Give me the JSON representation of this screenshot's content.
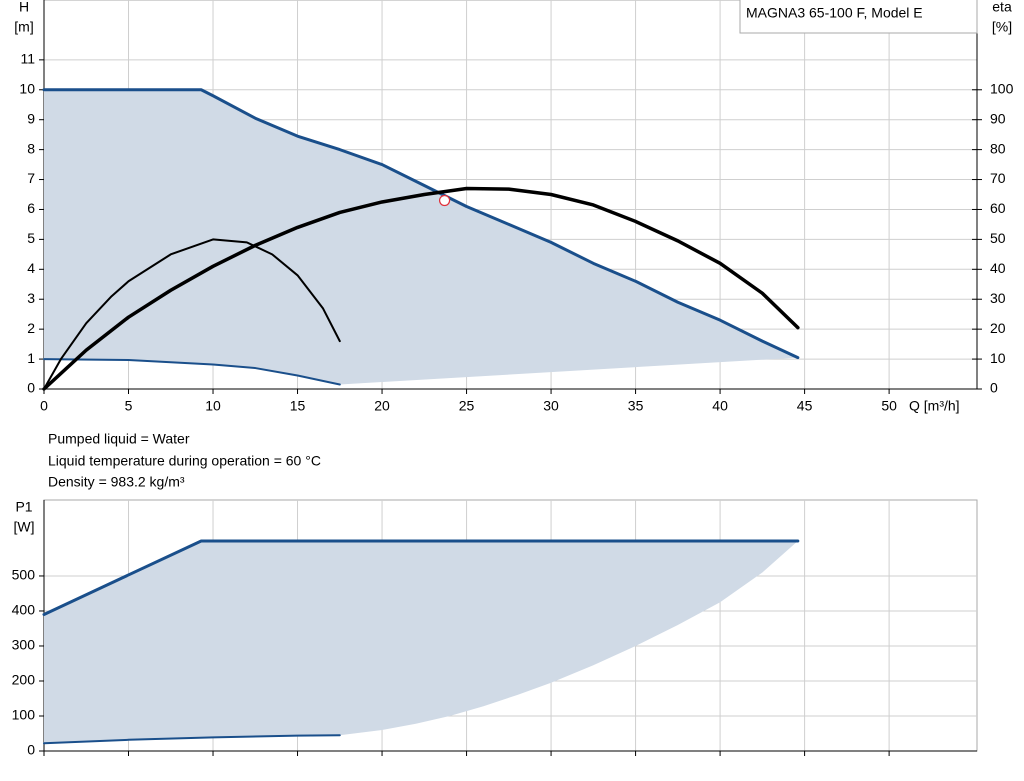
{
  "chart_data": [
    {
      "type": "line",
      "legend_text": "MAGNA3 65-100 F, Model E",
      "ylabel": "H",
      "yunit": "[m]",
      "y2label": "eta",
      "y2unit": "[%]",
      "xlabel": "Q [m³/h]",
      "xlim": [
        0,
        55.2
      ],
      "xticks": [
        0,
        5,
        10,
        15,
        20,
        25,
        30,
        35,
        40,
        45,
        50
      ],
      "ylim": [
        0,
        13
      ],
      "yticks": [
        0,
        1,
        2,
        3,
        4,
        5,
        6,
        7,
        8,
        9,
        10,
        11
      ],
      "y2lim": [
        0,
        130
      ],
      "y2ticks": [
        0,
        10,
        20,
        30,
        40,
        50,
        60,
        70,
        80,
        90,
        100
      ],
      "grid": true,
      "show_xtick_labels": true,
      "series": [
        {
          "color": "#1a4f8b",
          "width": 3,
          "x": [
            0,
            9.3,
            10,
            12.5,
            15,
            17.5,
            20,
            22.5,
            25,
            27.5,
            30,
            32.5,
            35,
            37.5,
            40,
            42.5,
            44.6
          ],
          "values": [
            10,
            10,
            9.8,
            9.05,
            8.45,
            8.0,
            7.5,
            6.8,
            6.1,
            5.5,
            4.9,
            4.2,
            3.6,
            2.9,
            2.3,
            1.6,
            1.05
          ]
        },
        {
          "color": "#1a4f8b",
          "width": 2,
          "x": [
            0,
            5,
            10,
            12.5,
            15,
            17.5
          ],
          "values": [
            1,
            0.97,
            0.82,
            0.7,
            0.45,
            0.15
          ]
        },
        {
          "color": "#000000",
          "width": 3.5,
          "axis": "y2",
          "x": [
            0,
            2.5,
            5,
            7.5,
            10,
            12.5,
            15,
            17.5,
            20,
            22.5,
            25,
            27.5,
            30,
            32.5,
            35,
            37.5,
            40,
            42.5,
            44.6
          ],
          "values": [
            0,
            13,
            24,
            33,
            41,
            48,
            54,
            59,
            62.5,
            65,
            67,
            66.8,
            65,
            61.5,
            56,
            49.5,
            42,
            32,
            20.5
          ]
        },
        {
          "color": "#000000",
          "width": 2,
          "axis": "y2",
          "x": [
            0,
            1,
            2.5,
            4,
            5,
            7.5,
            10,
            12,
            13.5,
            15,
            16.5,
            17.5
          ],
          "values": [
            0,
            10,
            22,
            31,
            36,
            45,
            50,
            49,
            45,
            38,
            27,
            16
          ]
        }
      ],
      "area": {
        "color": "#d0dae6",
        "x": [
          17.5,
          44.6
        ],
        "values": [
          0.15,
          1.05
        ]
      },
      "point": {
        "x": 23.7,
        "y": 6.3,
        "color": "#e0303a"
      }
    },
    {
      "type": "line",
      "ylabel": "P1",
      "yunit": "[W]",
      "xlim": [
        0,
        55.2
      ],
      "xticks": [
        0,
        5,
        10,
        15,
        20,
        25,
        30,
        35,
        40,
        45,
        50
      ],
      "ylim": [
        0,
        717
      ],
      "yticks": [
        0,
        100,
        200,
        300,
        400,
        500
      ],
      "grid": true,
      "show_xtick_labels": false,
      "series": [
        {
          "color": "#1a4f8b",
          "width": 3,
          "x": [
            0,
            9.3,
            44.6
          ],
          "values": [
            390,
            600,
            600
          ]
        },
        {
          "color": "#1a4f8b",
          "width": 2,
          "x": [
            0,
            5,
            10,
            15,
            17.5
          ],
          "values": [
            22,
            32,
            39,
            44,
            45
          ]
        }
      ],
      "area": {
        "color": "#d0dae6",
        "x": [
          17.5,
          20,
          22,
          24,
          26,
          28,
          30,
          32.5,
          35,
          37.5,
          40,
          42.5,
          44.6
        ],
        "values": [
          45,
          60,
          78,
          100,
          128,
          160,
          195,
          245,
          300,
          360,
          425,
          510,
          600
        ]
      }
    }
  ],
  "liquid_info": [
    "Pumped liquid = Water",
    "Liquid temperature during operation = 60 °C",
    "Density = 983.2 kg/m³"
  ]
}
